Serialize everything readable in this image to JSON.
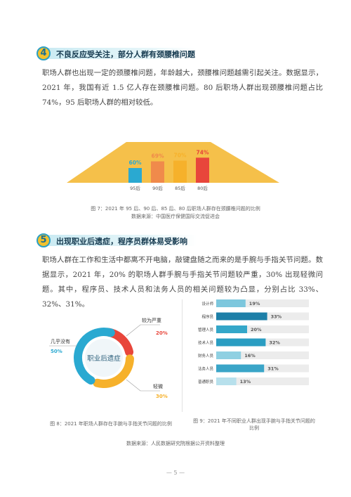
{
  "section4": {
    "number": "4",
    "title": "不良反应受关注，部分人群有颈腰椎问题",
    "paragraph": "职场人群也出现一定的颈腰椎问题，年龄越大，颈腰椎问题越需引起关注。数据显示，2021 年，我国有近 1.5 亿人存在颈腰椎问题。80 后职场人群出现颈腰椎问题占比 74%，95 后职场人群的相对较低。"
  },
  "fig7": {
    "caption": "图 7：2021 年 95 后、90 后、85 后、80 后职场人群存在颈腰椎问题的比例",
    "source": "数据来源：中国医疗保健国际交流促进会",
    "chart_data": {
      "type": "bar",
      "categories": [
        "95后",
        "90后",
        "85后",
        "80后"
      ],
      "values": [
        60,
        69,
        70,
        74
      ],
      "value_labels": [
        "60%",
        "69%",
        "70%",
        "74%"
      ],
      "unit": "%",
      "colors": {
        "bars": [
          "#2aa9d1",
          "#f08a4b",
          "#f6b12b",
          "#e8463b"
        ],
        "labels": [
          "#2aa9d1",
          "#f08a4b",
          "#f6b12b",
          "#e8463b"
        ],
        "background_area": "#f5c04a"
      }
    }
  },
  "section5": {
    "number": "5",
    "title": "出现职业后遗症，程序员群体易受影响",
    "paragraph": "职场人群在工作和生活中都离不开电脑，敲键盘随之而来的是手腕与手指关节问题。数据显示，2021 年，20% 的职场人群手腕与手指关节问题较严重，30% 出现轻微问题。其中，程序员、技术人员和法务人员的相关问题较为凸显，分别占比 33%、32%、31%。"
  },
  "fig8": {
    "caption": "图 8：2021 年职场人群存在手腕与手指关节问题的比例",
    "center_label": "职业后遗症",
    "chart_data": {
      "type": "pie",
      "labels": [
        "较为严重",
        "轻微",
        "几乎没有"
      ],
      "values": [
        20,
        30,
        50
      ],
      "value_labels": [
        "20%",
        "30%",
        "50%"
      ],
      "colors": [
        "#e8463b",
        "#f6b12b",
        "#2aa9d1"
      ]
    }
  },
  "fig9": {
    "caption": "图 9：2021 年不同职业人群出现手腕与手指关节问题的比例",
    "chart_data": {
      "type": "bar",
      "orientation": "horizontal",
      "categories": [
        "设计师",
        "程序员",
        "管理人员",
        "技术人员",
        "财务人员",
        "法务人员",
        "普通职员"
      ],
      "values": [
        19,
        33,
        20,
        32,
        16,
        31,
        13
      ],
      "value_labels": [
        "19%",
        "33%",
        "20%",
        "32%",
        "16%",
        "31%",
        "13%"
      ],
      "colors": [
        "#7dc7dd",
        "#1d7fa8",
        "#34a7c9",
        "#2a9dc2",
        "#8fd0e2",
        "#3aa5c8",
        "#b7e0ec"
      ],
      "track_color": "#ececec"
    }
  },
  "shared_source": "数据来源：人民数据研究院根据公开资料整理",
  "page_number": "— 5 —"
}
